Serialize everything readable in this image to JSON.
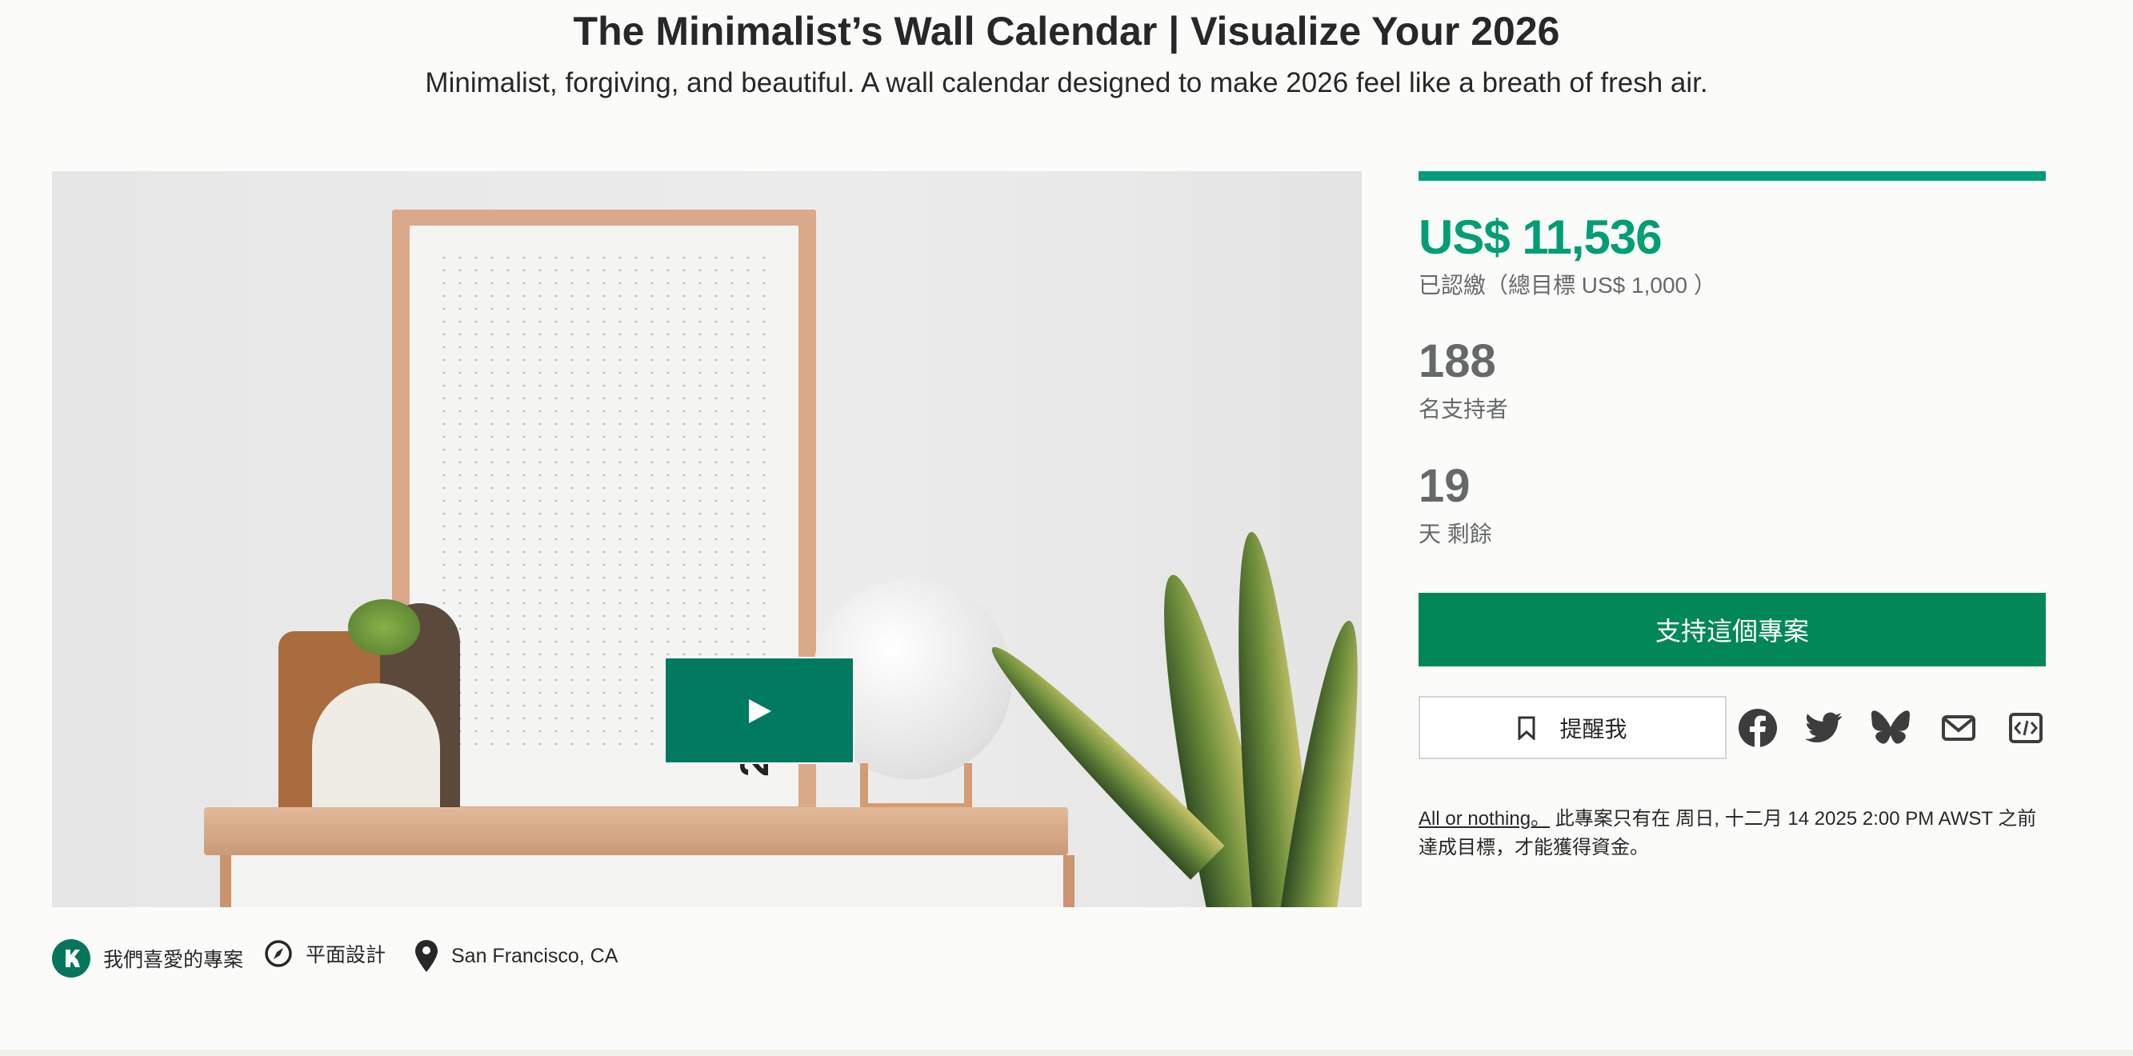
{
  "header": {
    "title": "The Minimalist’s Wall Calendar | Visualize Your 2026",
    "subtitle": "Minimalist, forgiving, and beautiful. A wall calendar designed to make 2026 feel like a breath of fresh air."
  },
  "media": {
    "poster_year": "26",
    "play_icon": "play-icon"
  },
  "funding": {
    "progress_percent": 100,
    "amount": "US$ 11,536",
    "pledged_label": "已認繳（總目標 US$ 1,000 ）",
    "backers": "188",
    "backers_label": "名支持者",
    "days": "19",
    "days_label": "天 剩餘"
  },
  "actions": {
    "back_label": "支持這個專案",
    "remind_label": "提醒我",
    "share_icons": [
      "facebook-icon",
      "twitter-icon",
      "bluesky-icon",
      "email-icon",
      "embed-icon"
    ]
  },
  "notice": {
    "link": "All or nothing。",
    "text": " 此專案只有在 周日, 十二月 14 2025 2:00 PM AWST 之前達成目標，才能獲得資金。"
  },
  "meta": {
    "badge": "我們喜愛的專案",
    "category": "平面設計",
    "location": "San Francisco, CA"
  },
  "colors": {
    "accent": "#009e74",
    "button": "#028858",
    "play": "#007a60"
  }
}
